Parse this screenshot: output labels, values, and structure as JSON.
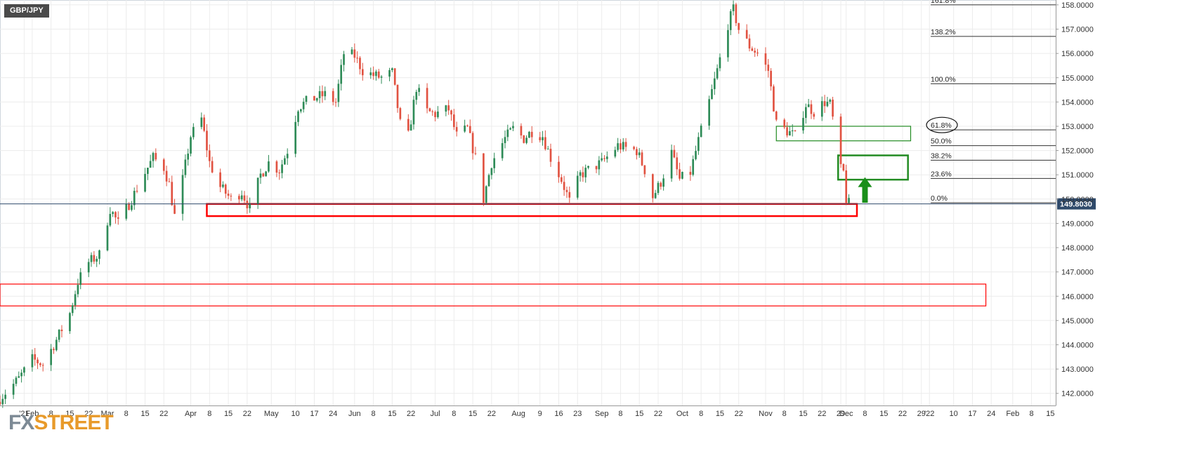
{
  "symbol": "GBP/JPY",
  "branding": {
    "logo_fx": "FX",
    "logo_street": "STREET"
  },
  "colors": {
    "bull": "#2e8b57",
    "bear": "#e15241",
    "support_zone": "#ff0000",
    "fib_zone": "#228b22",
    "arrow": "#1a8f1a",
    "price_tag_bg": "#2f4a6b",
    "price_line": "#2f4a6b",
    "grid": "#ececec"
  },
  "chart_data": {
    "type": "candlestick",
    "title": "GBP/JPY",
    "period": "daily",
    "x_range": [
      "2021-01-20",
      "2022-02-17"
    ],
    "ylim": [
      141.5,
      158.2
    ],
    "y_ticks": [
      "142.0000",
      "143.0000",
      "144.0000",
      "145.0000",
      "146.0000",
      "147.0000",
      "148.0000",
      "149.0000",
      "150.0000",
      "151.0000",
      "152.0000",
      "153.0000",
      "154.0000",
      "155.0000",
      "156.0000",
      "157.0000",
      "158.0000"
    ],
    "x_ticks": [
      {
        "label": "'21",
        "date": "2021-01-29"
      },
      {
        "label": "Feb",
        "date": "2021-02-01"
      },
      {
        "label": "8",
        "date": "2021-02-08"
      },
      {
        "label": "15",
        "date": "2021-02-15"
      },
      {
        "label": "22",
        "date": "2021-02-22"
      },
      {
        "label": "Mar",
        "date": "2021-03-01"
      },
      {
        "label": "8",
        "date": "2021-03-08"
      },
      {
        "label": "15",
        "date": "2021-03-15"
      },
      {
        "label": "22",
        "date": "2021-03-22"
      },
      {
        "label": "Apr",
        "date": "2021-04-01"
      },
      {
        "label": "8",
        "date": "2021-04-08"
      },
      {
        "label": "15",
        "date": "2021-04-15"
      },
      {
        "label": "22",
        "date": "2021-04-22"
      },
      {
        "label": "May",
        "date": "2021-05-01"
      },
      {
        "label": "10",
        "date": "2021-05-10"
      },
      {
        "label": "17",
        "date": "2021-05-17"
      },
      {
        "label": "24",
        "date": "2021-05-24"
      },
      {
        "label": "Jun",
        "date": "2021-06-01"
      },
      {
        "label": "8",
        "date": "2021-06-08"
      },
      {
        "label": "15",
        "date": "2021-06-15"
      },
      {
        "label": "22",
        "date": "2021-06-22"
      },
      {
        "label": "Jul",
        "date": "2021-07-01"
      },
      {
        "label": "8",
        "date": "2021-07-08"
      },
      {
        "label": "15",
        "date": "2021-07-15"
      },
      {
        "label": "22",
        "date": "2021-07-22"
      },
      {
        "label": "Aug",
        "date": "2021-08-01"
      },
      {
        "label": "9",
        "date": "2021-08-09"
      },
      {
        "label": "16",
        "date": "2021-08-16"
      },
      {
        "label": "23",
        "date": "2021-08-23"
      },
      {
        "label": "Sep",
        "date": "2021-09-01"
      },
      {
        "label": "8",
        "date": "2021-09-08"
      },
      {
        "label": "15",
        "date": "2021-09-15"
      },
      {
        "label": "22",
        "date": "2021-09-22"
      },
      {
        "label": "Oct",
        "date": "2021-10-01"
      },
      {
        "label": "8",
        "date": "2021-10-08"
      },
      {
        "label": "15",
        "date": "2021-10-15"
      },
      {
        "label": "22",
        "date": "2021-10-22"
      },
      {
        "label": "Nov",
        "date": "2021-11-01"
      },
      {
        "label": "8",
        "date": "2021-11-08"
      },
      {
        "label": "15",
        "date": "2021-11-15"
      },
      {
        "label": "22",
        "date": "2021-11-22"
      },
      {
        "label": "29",
        "date": "2021-11-29"
      },
      {
        "label": "Dec",
        "date": "2021-12-01"
      },
      {
        "label": "8",
        "date": "2021-12-08"
      },
      {
        "label": "15",
        "date": "2021-12-15"
      },
      {
        "label": "22",
        "date": "2021-12-22"
      },
      {
        "label": "29",
        "date": "2021-12-29"
      },
      {
        "label": "'22",
        "date": "2022-01-01"
      },
      {
        "label": "10",
        "date": "2022-01-10"
      },
      {
        "label": "17",
        "date": "2022-01-17"
      },
      {
        "label": "24",
        "date": "2022-01-24"
      },
      {
        "label": "Feb",
        "date": "2022-02-01"
      },
      {
        "label": "8",
        "date": "2022-02-08"
      },
      {
        "label": "15",
        "date": "2022-02-15"
      }
    ],
    "current_price": {
      "label": "149.8030",
      "value": 149.803
    },
    "price_path": [
      [
        "2021-01-20",
        141.8
      ],
      [
        "2021-01-27",
        142.6
      ],
      [
        "2021-02-01",
        143.4
      ],
      [
        "2021-02-05",
        143.2
      ],
      [
        "2021-02-10",
        144.2
      ],
      [
        "2021-02-15",
        145.3
      ],
      [
        "2021-02-18",
        146.6
      ],
      [
        "2021-02-22",
        147.4
      ],
      [
        "2021-02-26",
        147.7
      ],
      [
        "2021-03-02",
        149.6
      ],
      [
        "2021-03-05",
        149.0
      ],
      [
        "2021-03-10",
        150.0
      ],
      [
        "2021-03-15",
        151.1
      ],
      [
        "2021-03-18",
        151.7
      ],
      [
        "2021-03-22",
        151.3
      ],
      [
        "2021-03-24",
        150.6
      ],
      [
        "2021-03-26",
        149.3
      ],
      [
        "2021-03-29",
        150.8
      ],
      [
        "2021-04-01",
        152.6
      ],
      [
        "2021-04-05",
        153.3
      ],
      [
        "2021-04-08",
        151.5
      ],
      [
        "2021-04-12",
        150.5
      ],
      [
        "2021-04-16",
        150.0
      ],
      [
        "2021-04-20",
        150.3
      ],
      [
        "2021-04-23",
        149.6
      ],
      [
        "2021-04-27",
        151.0
      ],
      [
        "2021-04-30",
        151.5
      ],
      [
        "2021-05-04",
        151.2
      ],
      [
        "2021-05-07",
        152.0
      ],
      [
        "2021-05-11",
        153.8
      ],
      [
        "2021-05-14",
        154.0
      ],
      [
        "2021-05-18",
        154.2
      ],
      [
        "2021-05-21",
        154.3
      ],
      [
        "2021-05-25",
        154.0
      ],
      [
        "2021-05-28",
        156.0
      ],
      [
        "2021-06-01",
        155.9
      ],
      [
        "2021-06-04",
        155.3
      ],
      [
        "2021-06-08",
        155.1
      ],
      [
        "2021-06-11",
        155.0
      ],
      [
        "2021-06-15",
        155.2
      ],
      [
        "2021-06-18",
        153.1
      ],
      [
        "2021-06-21",
        152.6
      ],
      [
        "2021-06-24",
        154.6
      ],
      [
        "2021-06-28",
        153.6
      ],
      [
        "2021-07-01",
        153.5
      ],
      [
        "2021-07-06",
        153.7
      ],
      [
        "2021-07-09",
        152.6
      ],
      [
        "2021-07-13",
        152.9
      ],
      [
        "2021-07-16",
        151.7
      ],
      [
        "2021-07-19",
        150.0
      ],
      [
        "2021-07-22",
        151.5
      ],
      [
        "2021-07-27",
        152.5
      ],
      [
        "2021-07-30",
        152.9
      ],
      [
        "2021-08-03",
        152.5
      ],
      [
        "2021-08-06",
        152.8
      ],
      [
        "2021-08-10",
        152.6
      ],
      [
        "2021-08-13",
        151.7
      ],
      [
        "2021-08-17",
        150.8
      ],
      [
        "2021-08-20",
        149.9
      ],
      [
        "2021-08-24",
        151.0
      ],
      [
        "2021-08-27",
        151.2
      ],
      [
        "2021-09-01",
        151.5
      ],
      [
        "2021-09-07",
        152.2
      ],
      [
        "2021-09-10",
        152.1
      ],
      [
        "2021-09-14",
        152.0
      ],
      [
        "2021-09-17",
        151.2
      ],
      [
        "2021-09-20",
        150.1
      ],
      [
        "2021-09-23",
        150.7
      ],
      [
        "2021-09-27",
        151.9
      ],
      [
        "2021-09-30",
        150.8
      ],
      [
        "2021-10-04",
        151.1
      ],
      [
        "2021-10-07",
        152.4
      ],
      [
        "2021-10-11",
        154.0
      ],
      [
        "2021-10-14",
        155.3
      ],
      [
        "2021-10-18",
        157.2
      ],
      [
        "2021-10-20",
        157.8
      ],
      [
        "2021-10-22",
        157.0
      ],
      [
        "2021-10-26",
        156.3
      ],
      [
        "2021-10-29",
        156.0
      ],
      [
        "2021-11-02",
        155.3
      ],
      [
        "2021-11-05",
        153.1
      ],
      [
        "2021-11-09",
        152.8
      ],
      [
        "2021-11-12",
        152.6
      ],
      [
        "2021-11-16",
        153.9
      ],
      [
        "2021-11-19",
        153.6
      ],
      [
        "2021-11-23",
        154.0
      ],
      [
        "2021-11-25",
        153.9
      ],
      [
        "2021-11-26",
        153.3
      ],
      [
        "2021-11-29",
        151.2
      ],
      [
        "2021-11-30",
        151.1
      ],
      [
        "2021-12-01",
        150.0
      ],
      [
        "2021-12-02",
        149.8
      ]
    ],
    "fibonacci": {
      "levels": [
        {
          "label": "161.8%",
          "value": 158.0
        },
        {
          "label": "138.2%",
          "value": 156.7
        },
        {
          "label": "100.0%",
          "value": 154.75
        },
        {
          "label": "61.8%",
          "value": 152.85
        },
        {
          "label": "50.0%",
          "value": 152.2
        },
        {
          "label": "38.2%",
          "value": 151.6
        },
        {
          "label": "23.6%",
          "value": 150.85
        },
        {
          "label": "0.0%",
          "value": 149.85
        }
      ],
      "circled_level": "61.8%"
    },
    "zones": [
      {
        "name": "support",
        "start": "2021-04-07",
        "end": "2021-12-05",
        "low": 149.3,
        "high": 149.8,
        "color": "red"
      },
      {
        "name": "lower-support",
        "start": "2021-01-20",
        "end": "2022-01-22",
        "low": 145.6,
        "high": 146.5,
        "color": "red"
      },
      {
        "name": "resistance-61.8",
        "start": "2021-11-05",
        "end": "2021-12-25",
        "low": 152.4,
        "high": 153.0,
        "color": "green"
      },
      {
        "name": "target-fib",
        "start": "2021-11-28",
        "end": "2021-12-24",
        "low": 150.8,
        "high": 151.8,
        "color": "green"
      }
    ],
    "arrow": {
      "date": "2021-12-08",
      "from": 149.85,
      "to": 150.9,
      "direction": "up"
    }
  }
}
